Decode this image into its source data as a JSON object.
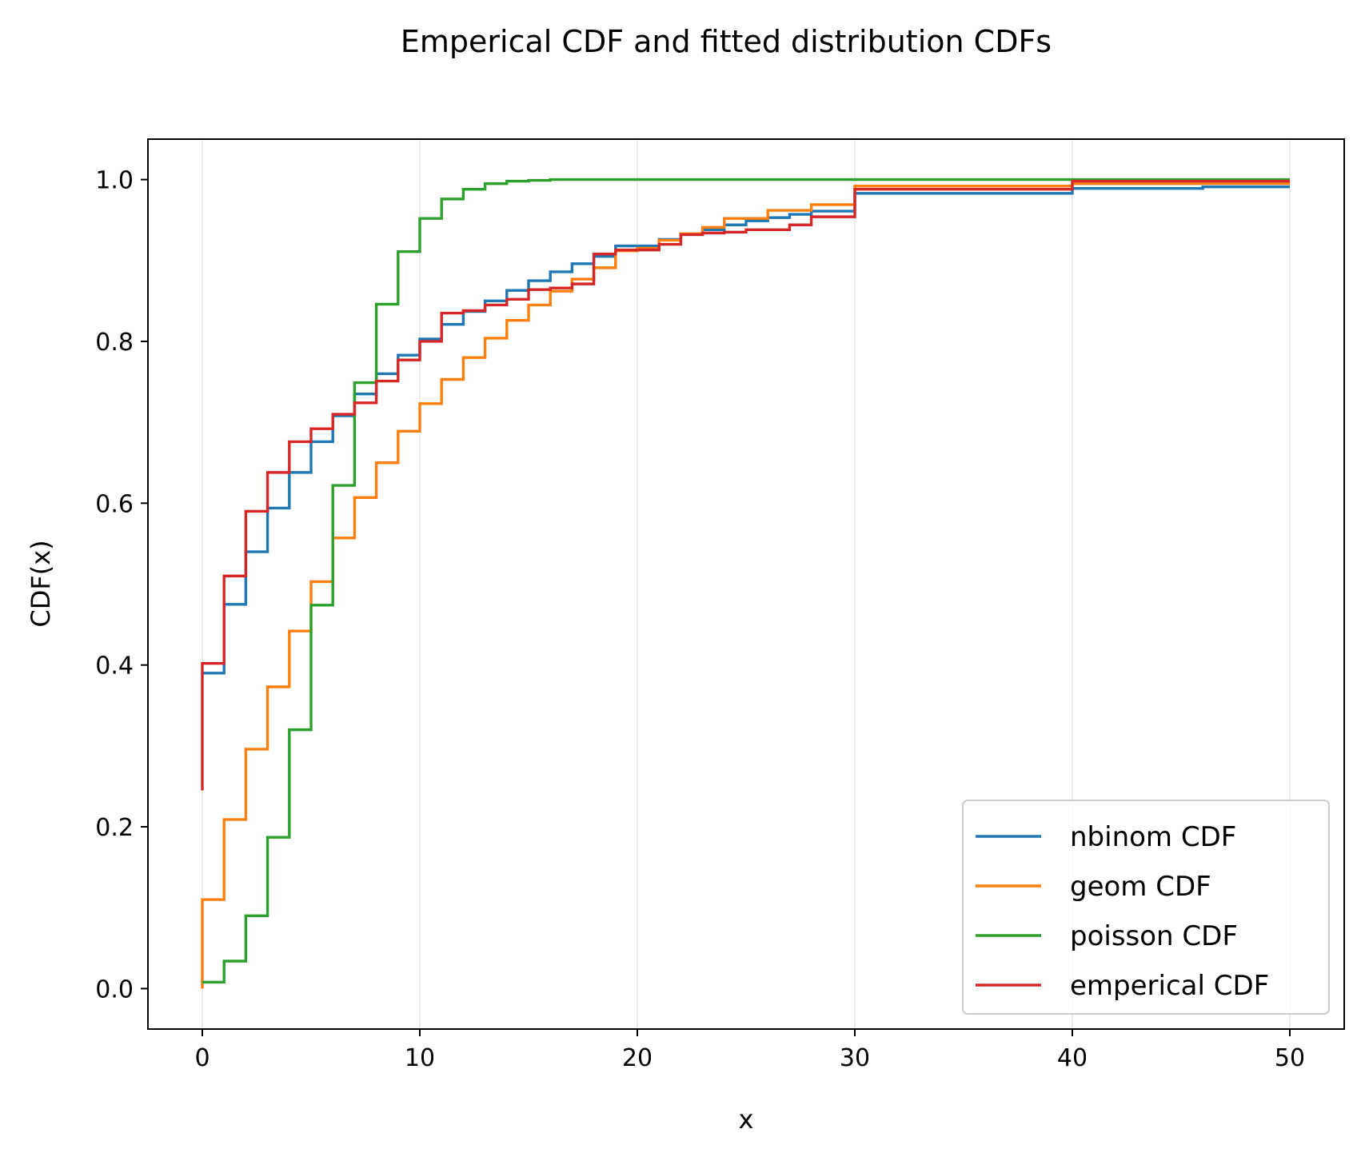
{
  "chart_data": {
    "type": "line",
    "step": "post",
    "title": "Emperical CDF and fitted distribution CDFs",
    "xlabel": "x",
    "ylabel": "CDF(x)",
    "xlim": [
      -2.5,
      52.5
    ],
    "ylim": [
      -0.05,
      1.05
    ],
    "xticks": [
      0,
      10,
      20,
      30,
      40,
      50
    ],
    "yticks": [
      0.0,
      0.2,
      0.4,
      0.6,
      0.8,
      1.0
    ],
    "xtick_labels": [
      "0",
      "10",
      "20",
      "30",
      "40",
      "50"
    ],
    "ytick_labels": [
      "0.0",
      "0.2",
      "0.4",
      "0.6",
      "0.8",
      "1.0"
    ],
    "grid": "x-only",
    "legend": "lower-right",
    "series": [
      {
        "name": "nbinom CDF",
        "color": "#1f77b4",
        "x": [
          0,
          1,
          2,
          3,
          4,
          5,
          6,
          7,
          8,
          9,
          10,
          11,
          12,
          13,
          14,
          15,
          16,
          17,
          18,
          19,
          20,
          21,
          22,
          23,
          24,
          25,
          26,
          27,
          28,
          29,
          30,
          40,
          46,
          50
        ],
        "y": [
          0.39,
          0.475,
          0.54,
          0.594,
          0.638,
          0.676,
          0.708,
          0.735,
          0.76,
          0.783,
          0.803,
          0.821,
          0.837,
          0.85,
          0.863,
          0.875,
          0.886,
          0.896,
          0.905,
          0.918,
          0.918,
          0.926,
          0.932,
          0.938,
          0.944,
          0.949,
          0.953,
          0.957,
          0.961,
          0.961,
          0.983,
          0.989,
          0.991,
          0.991
        ]
      },
      {
        "name": "geom CDF",
        "color": "#ff7f0e",
        "x": [
          0,
          0,
          1,
          2,
          3,
          4,
          5,
          6,
          7,
          8,
          9,
          10,
          11,
          12,
          13,
          14,
          15,
          16,
          17,
          18,
          19,
          20,
          21,
          22,
          23,
          24,
          25,
          26,
          27,
          28,
          29,
          30,
          40,
          50
        ],
        "y": [
          0.0,
          0.11,
          0.209,
          0.296,
          0.373,
          0.442,
          0.503,
          0.557,
          0.607,
          0.65,
          0.689,
          0.723,
          0.753,
          0.78,
          0.804,
          0.826,
          0.845,
          0.862,
          0.877,
          0.891,
          0.912,
          0.915,
          0.925,
          0.933,
          0.941,
          0.952,
          0.952,
          0.962,
          0.962,
          0.969,
          0.969,
          0.992,
          0.995,
          0.995
        ]
      },
      {
        "name": "poisson CDF",
        "color": "#2ca02c",
        "x": [
          0,
          1,
          2,
          3,
          4,
          5,
          6,
          7,
          8,
          9,
          10,
          11,
          12,
          13,
          14,
          15,
          16,
          17,
          50
        ],
        "y": [
          0.008,
          0.034,
          0.09,
          0.187,
          0.32,
          0.474,
          0.622,
          0.749,
          0.846,
          0.911,
          0.952,
          0.976,
          0.988,
          0.995,
          0.998,
          0.999,
          1.0,
          1.0,
          1.0
        ]
      },
      {
        "name": "emperical CDF",
        "color": "#d62728",
        "x": [
          0,
          0,
          1,
          2,
          3,
          4,
          5,
          6,
          7,
          8,
          9,
          10,
          11,
          12,
          13,
          14,
          15,
          16,
          17,
          18,
          19,
          20,
          21,
          22,
          23,
          24,
          25,
          26,
          27,
          28,
          29,
          30,
          40,
          50
        ],
        "y": [
          0.245,
          0.402,
          0.51,
          0.59,
          0.638,
          0.676,
          0.692,
          0.71,
          0.724,
          0.751,
          0.777,
          0.8,
          0.835,
          0.838,
          0.845,
          0.852,
          0.864,
          0.866,
          0.871,
          0.908,
          0.913,
          0.913,
          0.92,
          0.932,
          0.934,
          0.935,
          0.938,
          0.938,
          0.944,
          0.954,
          0.954,
          0.988,
          0.998,
          0.998
        ]
      }
    ]
  }
}
